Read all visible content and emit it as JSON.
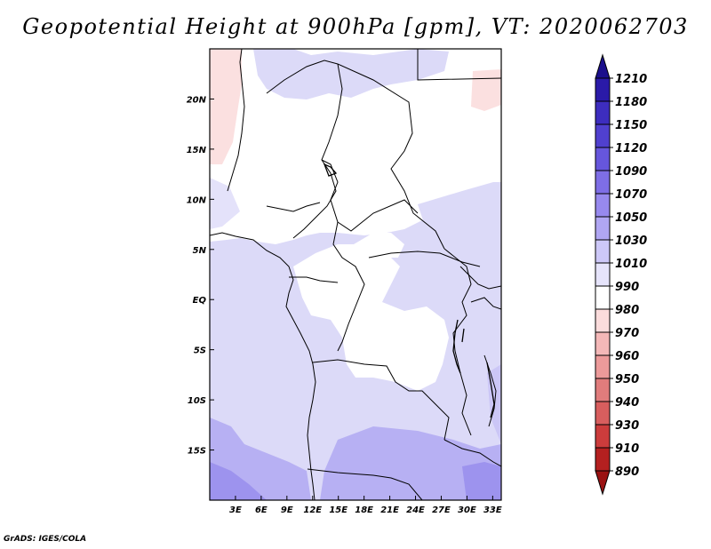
{
  "title": "Geopotential Height at 900hPa [gpm], VT: 2020062703",
  "credit": "GrADS: IGES/COLA",
  "map": {
    "lon_range": [
      0,
      34
    ],
    "lat_range": [
      -20,
      25
    ],
    "lon_ticks": [
      3,
      6,
      9,
      12,
      15,
      18,
      21,
      24,
      27,
      30,
      33
    ],
    "lon_tick_labels": [
      "3E",
      "6E",
      "9E",
      "12E",
      "15E",
      "18E",
      "21E",
      "24E",
      "27E",
      "30E",
      "33E"
    ],
    "lat_ticks": [
      20,
      15,
      10,
      5,
      0,
      -5,
      -10,
      -15
    ],
    "lat_tick_labels": [
      "20N",
      "15N",
      "10N",
      "5N",
      "EQ",
      "5S",
      "10S",
      "15S"
    ]
  },
  "colorbar": {
    "levels": [
      "1210",
      "1180",
      "1150",
      "1120",
      "1090",
      "1070",
      "1050",
      "1030",
      "1010",
      "990",
      "980",
      "970",
      "960",
      "950",
      "940",
      "930",
      "910",
      "890"
    ],
    "colors": [
      "#1b0f8c",
      "#2a1aa8",
      "#3d2dbf",
      "#5040cf",
      "#6656dc",
      "#7e6ee6",
      "#9789ee",
      "#b0a6f3",
      "#cdc8f8",
      "#e6e4fb",
      "#ffffff",
      "#fbdcdc",
      "#f4b8b8",
      "#ec9a9a",
      "#e07c7c",
      "#d85e5e",
      "#cc3c3c",
      "#b42020",
      "#9a1212"
    ]
  }
}
